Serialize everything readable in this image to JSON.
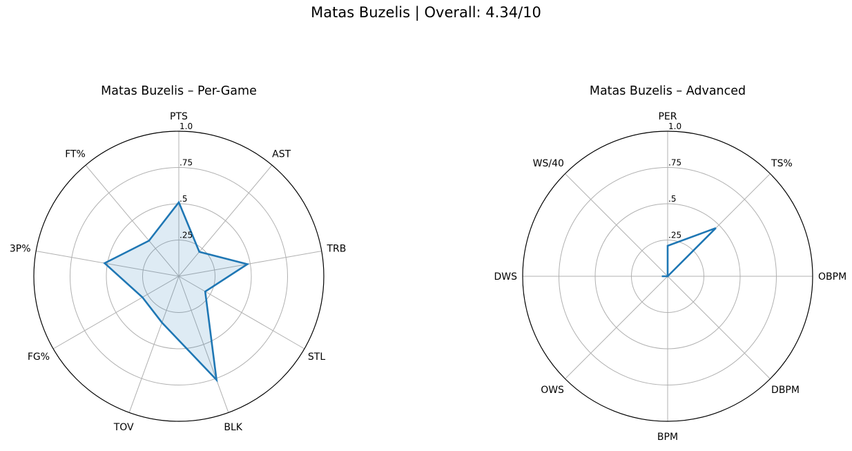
{
  "suptitle": "Matas Buzelis | Overall: 4.34/10",
  "chart_data": [
    {
      "type": "radar",
      "title": "Matas Buzelis – Per-Game",
      "axes": [
        "PTS",
        "AST",
        "TRB",
        "STL",
        "BLK",
        "TOV",
        "FG%",
        "3P%",
        "FT%"
      ],
      "series": [
        {
          "values": [
            0.51,
            0.22,
            0.48,
            0.21,
            0.76,
            0.34,
            0.29,
            0.52,
            0.32
          ]
        }
      ],
      "rlim": [
        0,
        1
      ],
      "rticks": [
        0.25,
        0.5,
        0.75,
        1.0
      ],
      "rtick_labels": [
        ".25",
        ".5",
        ".75",
        "1.0"
      ],
      "filled": true,
      "color": "#1f77b4",
      "grid": true
    },
    {
      "type": "radar",
      "title": "Matas Buzelis – Advanced",
      "axes": [
        "PER",
        "TS%",
        "OBPM",
        "DBPM",
        "BPM",
        "OWS",
        "DWS",
        "WS/40"
      ],
      "series": [
        {
          "values": [
            0.21,
            0.47,
            0.0,
            0.0,
            0.0,
            0.0,
            0.04,
            0.0
          ]
        }
      ],
      "rlim": [
        0,
        1
      ],
      "rticks": [
        0.25,
        0.5,
        0.75,
        1.0
      ],
      "rtick_labels": [
        ".25",
        ".5",
        ".75",
        "1.0"
      ],
      "filled": false,
      "color": "#1f77b4",
      "grid": true
    }
  ]
}
